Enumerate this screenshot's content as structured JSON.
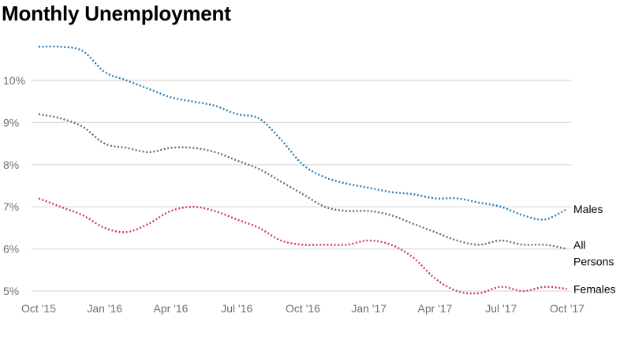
{
  "chart_data": {
    "type": "line",
    "title": "Monthly Unemployment",
    "xlabel": "",
    "ylabel": "",
    "x": [
      "Oct '15",
      "Nov '15",
      "Dec '15",
      "Jan '16",
      "Feb '16",
      "Mar '16",
      "Apr '16",
      "May '16",
      "Jun '16",
      "Jul '16",
      "Aug '16",
      "Sep '16",
      "Oct '16",
      "Nov '16",
      "Dec '16",
      "Jan '17",
      "Feb '17",
      "Mar '17",
      "Apr '17",
      "May '17",
      "Jun '17",
      "Jul '17",
      "Aug '17",
      "Sep '17",
      "Oct '17"
    ],
    "x_tick_labels": [
      "Oct '15",
      "Jan '16",
      "Apr '16",
      "Jul '16",
      "Oct '16",
      "Jan '17",
      "Apr '17",
      "Jul '17",
      "Oct '17"
    ],
    "y_tick_labels": [
      "5%",
      "6%",
      "7%",
      "8%",
      "9%",
      "10%"
    ],
    "ylim": [
      4.95,
      10.95
    ],
    "y_unit": "%",
    "grid": true,
    "legend": "labels at line ends (right)",
    "series": [
      {
        "name": "Males",
        "color": "#2e7db5",
        "values": [
          10.8,
          10.8,
          10.7,
          10.2,
          10.0,
          9.8,
          9.6,
          9.5,
          9.4,
          9.2,
          9.1,
          8.6,
          8.0,
          7.7,
          7.55,
          7.45,
          7.35,
          7.3,
          7.2,
          7.2,
          7.1,
          7.0,
          6.8,
          6.7,
          6.95
        ]
      },
      {
        "name": "All Persons",
        "color": "#6d6d6d",
        "values": [
          9.2,
          9.1,
          8.9,
          8.5,
          8.4,
          8.3,
          8.4,
          8.4,
          8.3,
          8.1,
          7.9,
          7.6,
          7.3,
          7.0,
          6.9,
          6.9,
          6.8,
          6.6,
          6.4,
          6.2,
          6.1,
          6.2,
          6.1,
          6.1,
          6.0
        ]
      },
      {
        "name": "Females",
        "color": "#cc3d55",
        "values": [
          7.2,
          7.0,
          6.8,
          6.5,
          6.4,
          6.6,
          6.9,
          7.0,
          6.9,
          6.7,
          6.5,
          6.2,
          6.1,
          6.1,
          6.1,
          6.2,
          6.1,
          5.8,
          5.3,
          5.0,
          4.95,
          5.1,
          5.0,
          5.1,
          5.05
        ]
      }
    ],
    "series_labels": [
      {
        "series": "Males",
        "lines": [
          "Males"
        ]
      },
      {
        "series": "All Persons",
        "lines": [
          "All",
          "Persons"
        ]
      },
      {
        "series": "Females",
        "lines": [
          "Females"
        ]
      }
    ]
  }
}
